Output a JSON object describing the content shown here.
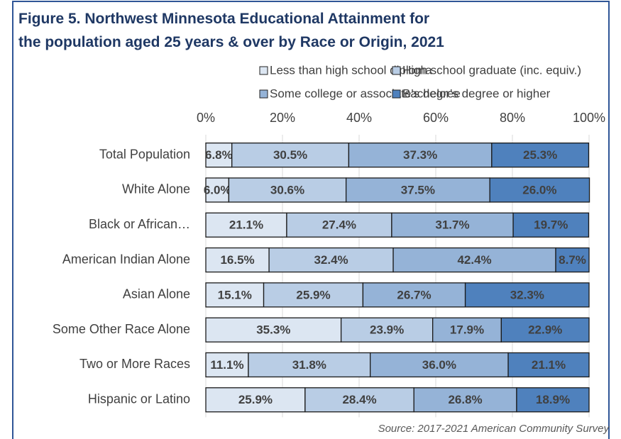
{
  "chart_data": {
    "type": "stacked-bar-horizontal",
    "title_lines": [
      "Figure 5. Northwest Minnesota Educational Attainment for",
      "the population aged 25 years & over by Race or Origin, 2021"
    ],
    "source": "Source: 2017-2021 American Community Survey",
    "categories": [
      "Total Population",
      "White Alone",
      "Black or African…",
      "American Indian Alone",
      "Asian Alone",
      "Some Other Race Alone",
      "Two or More Races",
      "Hispanic or Latino"
    ],
    "series": [
      {
        "name": "Less than high school diploma",
        "color": "#dce6f2",
        "values": [
          6.8,
          6.0,
          21.1,
          16.5,
          15.1,
          35.3,
          11.1,
          25.9
        ],
        "value_labels": [
          "6.8%",
          "6.0%",
          "21.1%",
          "16.5%",
          "15.1%",
          "35.3%",
          "11.1%",
          "25.9%"
        ]
      },
      {
        "name": "High school graduate (inc. equiv.)",
        "color": "#b9cde5",
        "values": [
          30.5,
          30.6,
          27.4,
          32.4,
          25.9,
          23.9,
          31.8,
          28.4
        ],
        "value_labels": [
          "30.5%",
          "30.6%",
          "27.4%",
          "32.4%",
          "25.9%",
          "23.9%",
          "31.8%",
          "28.4%"
        ]
      },
      {
        "name": "Some college or associate's degree",
        "color": "#95b3d7",
        "values": [
          37.3,
          37.5,
          31.7,
          42.4,
          26.7,
          17.9,
          36.0,
          26.8
        ],
        "value_labels": [
          "37.3%",
          "37.5%",
          "31.7%",
          "42.4%",
          "26.7%",
          "17.9%",
          "36.0%",
          "26.8%"
        ]
      },
      {
        "name": "Bachelor's degree or higher",
        "color": "#4f81bd",
        "values": [
          25.3,
          26.0,
          19.7,
          8.7,
          32.3,
          22.9,
          21.1,
          18.9
        ],
        "value_labels": [
          "25.3%",
          "26.0%",
          "19.7%",
          "8.7%",
          "32.3%",
          "22.9%",
          "21.1%",
          "18.9%"
        ]
      }
    ],
    "xlim": [
      0,
      100
    ],
    "xticks": [
      {
        "value": 0,
        "label": "0%"
      },
      {
        "value": 20,
        "label": "20%"
      },
      {
        "value": 40,
        "label": "40%"
      },
      {
        "value": 60,
        "label": "60%"
      },
      {
        "value": 80,
        "label": "80%"
      },
      {
        "value": 100,
        "label": "100%"
      }
    ],
    "grid": true
  }
}
